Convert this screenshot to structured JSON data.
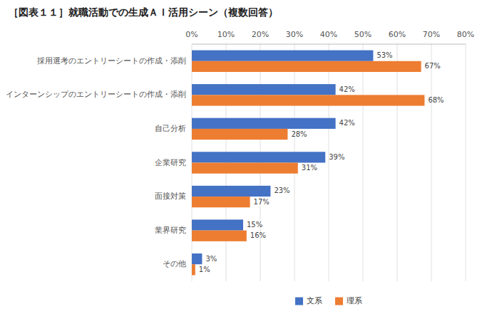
{
  "chart_data": {
    "type": "bar",
    "orientation": "horizontal",
    "title": "［図表１１］就職活動での生成ＡＩ活用シーン（複数回答）",
    "categories": [
      "採用選考のエントリーシートの作成・添削",
      "インターンシップのエントリーシートの作成・添削",
      "自己分析",
      "企業研究",
      "面接対策",
      "業界研究",
      "その他"
    ],
    "series": [
      {
        "name": "文系",
        "color": "#4472c4",
        "values": [
          53,
          42,
          42,
          39,
          23,
          15,
          3
        ],
        "value_labels": [
          "53%",
          "42%",
          "42%",
          "39%",
          "23%",
          "15%",
          "3%"
        ]
      },
      {
        "name": "理系",
        "color": "#ed7d31",
        "values": [
          67,
          68,
          28,
          31,
          17,
          16,
          1
        ],
        "value_labels": [
          "67%",
          "68%",
          "28%",
          "31%",
          "17%",
          "16%",
          "1%"
        ]
      }
    ],
    "xlim": [
      0,
      80
    ],
    "xticks": [
      {
        "value": 0,
        "label": "0%"
      },
      {
        "value": 10,
        "label": "10%"
      },
      {
        "value": 20,
        "label": "20%"
      },
      {
        "value": 30,
        "label": "30%"
      },
      {
        "value": 40,
        "label": "40%"
      },
      {
        "value": 50,
        "label": "50%"
      },
      {
        "value": 60,
        "label": "60%"
      },
      {
        "value": 70,
        "label": "70%"
      },
      {
        "value": 80,
        "label": "80%"
      }
    ],
    "grid": true,
    "legend": "bottom",
    "data_labels": true
  }
}
